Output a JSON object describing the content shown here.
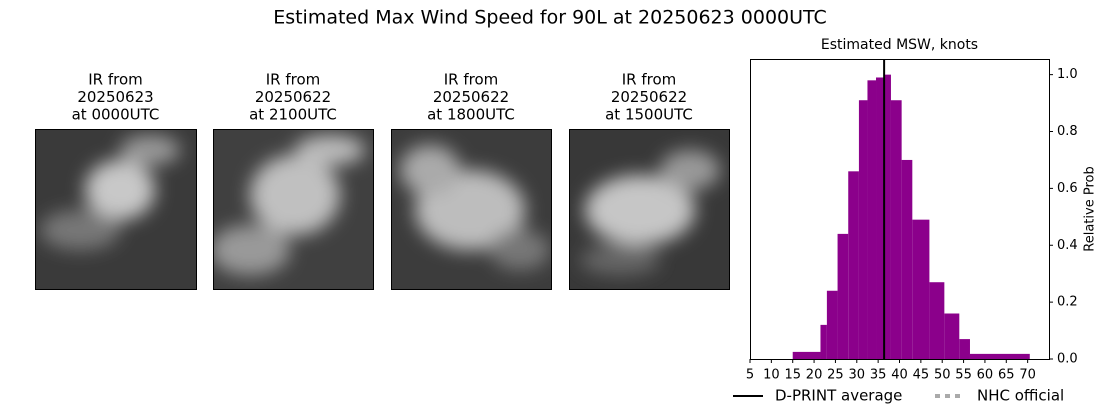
{
  "title": "Estimated Max Wind Speed for 90L at 20250623 0000UTC",
  "panels": [
    {
      "caption": [
        "IR from",
        "20250623",
        "at 0000UTC"
      ]
    },
    {
      "caption": [
        "IR from",
        "20250622",
        "at 2100UTC"
      ]
    },
    {
      "caption": [
        "IR from",
        "20250622",
        "at 1800UTC"
      ]
    },
    {
      "caption": [
        "IR from",
        "20250622",
        "at 1500UTC"
      ]
    }
  ],
  "chart_data": {
    "type": "histogram",
    "title": "Estimated MSW, knots",
    "ylabel": "Relative Prob",
    "color": "#8b008b",
    "bins": [
      15,
      21.5,
      23,
      25.5,
      28,
      30.5,
      32.5,
      34.5,
      36.5,
      38,
      40.5,
      43,
      47,
      50.5,
      54,
      56.5,
      70.5
    ],
    "values": [
      0.025,
      0.12,
      0.24,
      0.44,
      0.66,
      0.91,
      0.98,
      0.99,
      1.0,
      0.91,
      0.7,
      0.49,
      0.27,
      0.16,
      0.07,
      0.018
    ],
    "xlim": [
      5,
      75
    ],
    "xticks": [
      5,
      10,
      15,
      20,
      25,
      30,
      35,
      40,
      45,
      50,
      55,
      60,
      65,
      70
    ],
    "ylim": [
      0,
      1.055
    ],
    "yticks": [
      {
        "value": 0,
        "label": "0.0"
      },
      0.2,
      0.4,
      0.6,
      0.8,
      {
        "value": 1,
        "label": "1.0"
      }
    ],
    "y_axis_side": "right",
    "lines": [
      {
        "name": "D-PRINT average",
        "color": "#000000",
        "value": 36.4,
        "style": "solid"
      },
      {
        "name": "NHC official",
        "color": "#aaaaaa",
        "value": null,
        "style": "dotted"
      }
    ]
  }
}
